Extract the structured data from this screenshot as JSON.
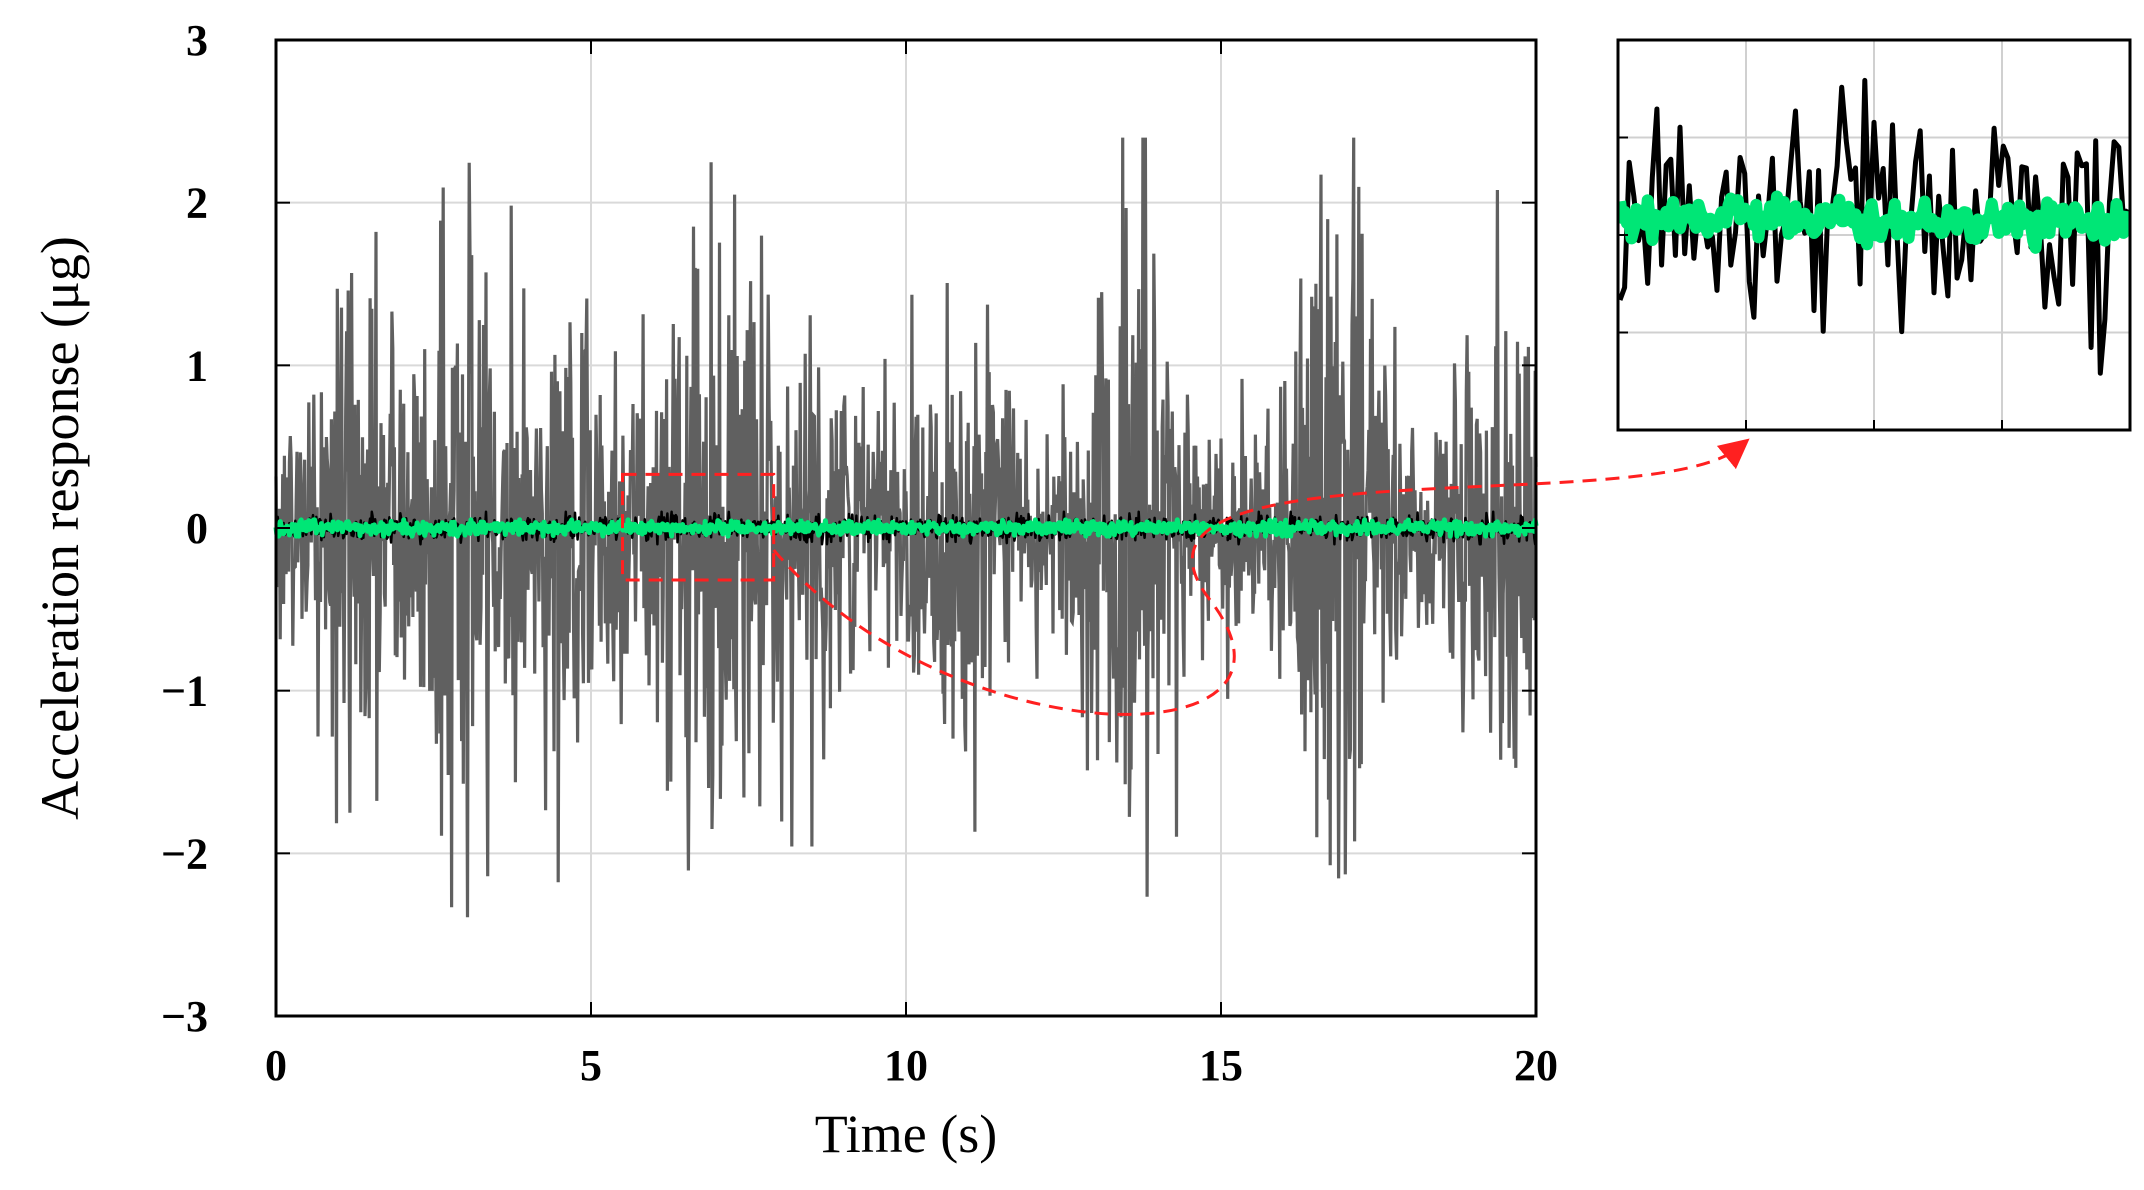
{
  "chart_data": {
    "type": "line",
    "title": "",
    "xlabel": "Time (s)",
    "ylabel": "Acceleration response (μg)",
    "xlim": [
      0,
      20
    ],
    "ylim": [
      -3,
      3
    ],
    "xticks": [
      0,
      5,
      10,
      15,
      20
    ],
    "xtick_labels": [
      "0",
      "5",
      "10",
      "15",
      "20"
    ],
    "yticks": [
      3,
      2,
      1,
      0,
      -1,
      -2,
      -3
    ],
    "ytick_labels": [
      "3",
      "2",
      "1",
      "0",
      "−1",
      "−2",
      "−3"
    ],
    "grid": true,
    "legend": "none",
    "series": [
      {
        "color": "#606060",
        "x_range": [
          0,
          20
        ],
        "approx_amplitude_range": [
          -2.6,
          2.4
        ]
      },
      {
        "color": "#000000",
        "x_range": [
          0,
          20
        ],
        "approx_amplitude_range": [
          -0.1,
          0.1
        ]
      },
      {
        "color": "#00e676",
        "x_range": [
          0,
          20
        ],
        "approx_amplitude_range": [
          -0.05,
          0.05
        ]
      }
    ],
    "annotations": [
      {
        "type": "zoom-box",
        "x_range": [
          5.5,
          7.9
        ],
        "y_range": [
          -0.32,
          0.33
        ],
        "color": "#ff2020",
        "style": "dashed"
      },
      {
        "type": "inset",
        "shows": "zoom-box",
        "connector": "dashed-arrow"
      }
    ]
  }
}
